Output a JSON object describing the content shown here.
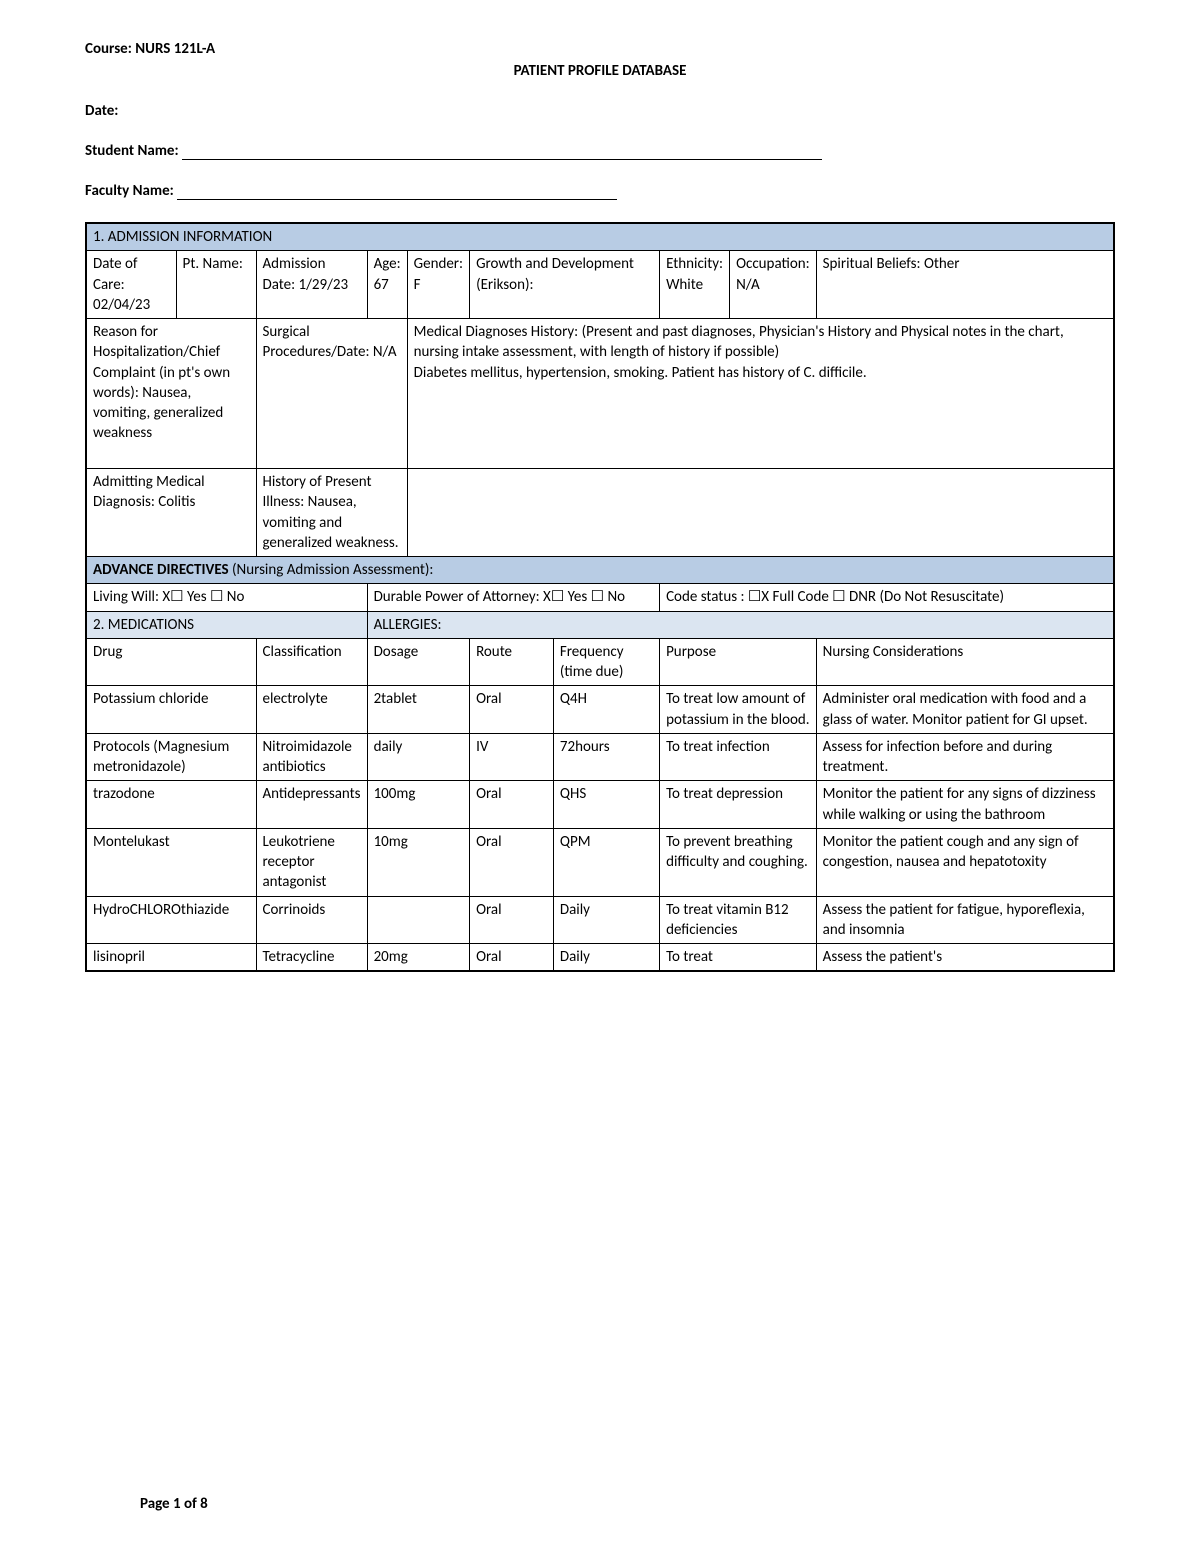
{
  "header": {
    "course": "Course: NURS 121L-A",
    "title": "PATIENT PROFILE DATABASE",
    "date_label": "Date:",
    "student_label": "Student Name:",
    "faculty_label": "Faculty Name:"
  },
  "section1_title": "1. ADMISSION INFORMATION",
  "row1": {
    "date_of_care": "Date of Care: 02/04/23",
    "pt_name": "Pt. Name:",
    "admission_date": "Admission Date: 1/29/23",
    "age": "Age: 67",
    "gender": "Gender: F",
    "growth": "Growth and Development (Erikson):",
    "ethnicity": "Ethnicity: White",
    "occupation": "Occupation: N/A",
    "spiritual": "Spiritual Beliefs: Other"
  },
  "row2": {
    "reason": "Reason for Hospitalization/Chief Complaint (in pt's own words): Nausea, vomiting, generalized weakness",
    "surgical": "Surgical Procedures/Date: N/A",
    "medhx": "Medical Diagnoses History: (Present and past diagnoses, Physician's History and Physical notes in the chart, nursing intake assessment, with length of history if possible)\nDiabetes mellitus, hypertension, smoking. Patient has history of C. difficile."
  },
  "row3": {
    "admitting_dx": "Admitting Medical Diagnosis: Colitis",
    "hpi": "History of Present Illness: Nausea, vomiting and generalized weakness."
  },
  "adv_dir_title": "ADVANCE DIRECTIVES (Nursing Admission Assessment):",
  "adv_dir": {
    "living_will": "Living Will:    X☐ Yes   ☐ No",
    "dpoa": "Durable Power of Attorney:      X☐ Yes   ☐ No",
    "code_status": "Code status :  ☐X Full Code   ☐ DNR (Do Not Resuscitate)"
  },
  "section2_title": "2. MEDICATIONS",
  "allergies_title": "ALLERGIES:",
  "med_headers": {
    "drug": "Drug",
    "classification": "Classification",
    "dosage": "Dosage",
    "route": "Route",
    "frequency": "Frequency (time due)",
    "purpose": "Purpose",
    "nursing": "Nursing Considerations"
  },
  "meds": [
    {
      "drug": "Potassium chloride",
      "class": "electrolyte",
      "dosage": "2tablet",
      "route": "Oral",
      "freq": "Q4H",
      "purpose": "To treat low amount of potassium in the blood.",
      "nursing": "Administer oral medication with food and a glass of water. Monitor patient for GI upset."
    },
    {
      "drug": "Protocols (Magnesium metronidazole)",
      "class": "Nitroimidazole antibiotics",
      "dosage": "daily",
      "route": "IV",
      "freq": "72hours",
      "purpose": "To treat infection",
      "nursing": "Assess for infection before and during treatment."
    },
    {
      "drug": "trazodone",
      "class": "Antidepressants",
      "dosage": "100mg",
      "route": "Oral",
      "freq": "QHS",
      "purpose": "To treat depression",
      "nursing": "Monitor the patient for any signs of dizziness while walking or using the bathroom"
    },
    {
      "drug": "Montelukast",
      "class": "Leukotriene receptor antagonist",
      "dosage": "10mg",
      "route": "Oral",
      "freq": "QPM",
      "purpose": "To prevent breathing difficulty and coughing.",
      "nursing": "Monitor the patient cough and any sign of congestion, nausea and hepatotoxity"
    },
    {
      "drug": "HydroCHLOROthiazide",
      "class": "Corrinoids",
      "dosage": "",
      "route": "Oral",
      "freq": "Daily",
      "purpose": "To treat vitamin B12 deficiencies",
      "nursing": "Assess the patient for fatigue, hyporeflexia, and insomnia"
    },
    {
      "drug": "lisinopril",
      "class": "Tetracycline",
      "dosage": "20mg",
      "route": "Oral",
      "freq": "Daily",
      "purpose": "To treat",
      "nursing": "Assess the patient's"
    }
  ],
  "footer": "Page 1 of 8",
  "colors": {
    "section_bg": "#b8cce4",
    "section_light_bg": "#dbe5f1",
    "border": "#000000"
  }
}
